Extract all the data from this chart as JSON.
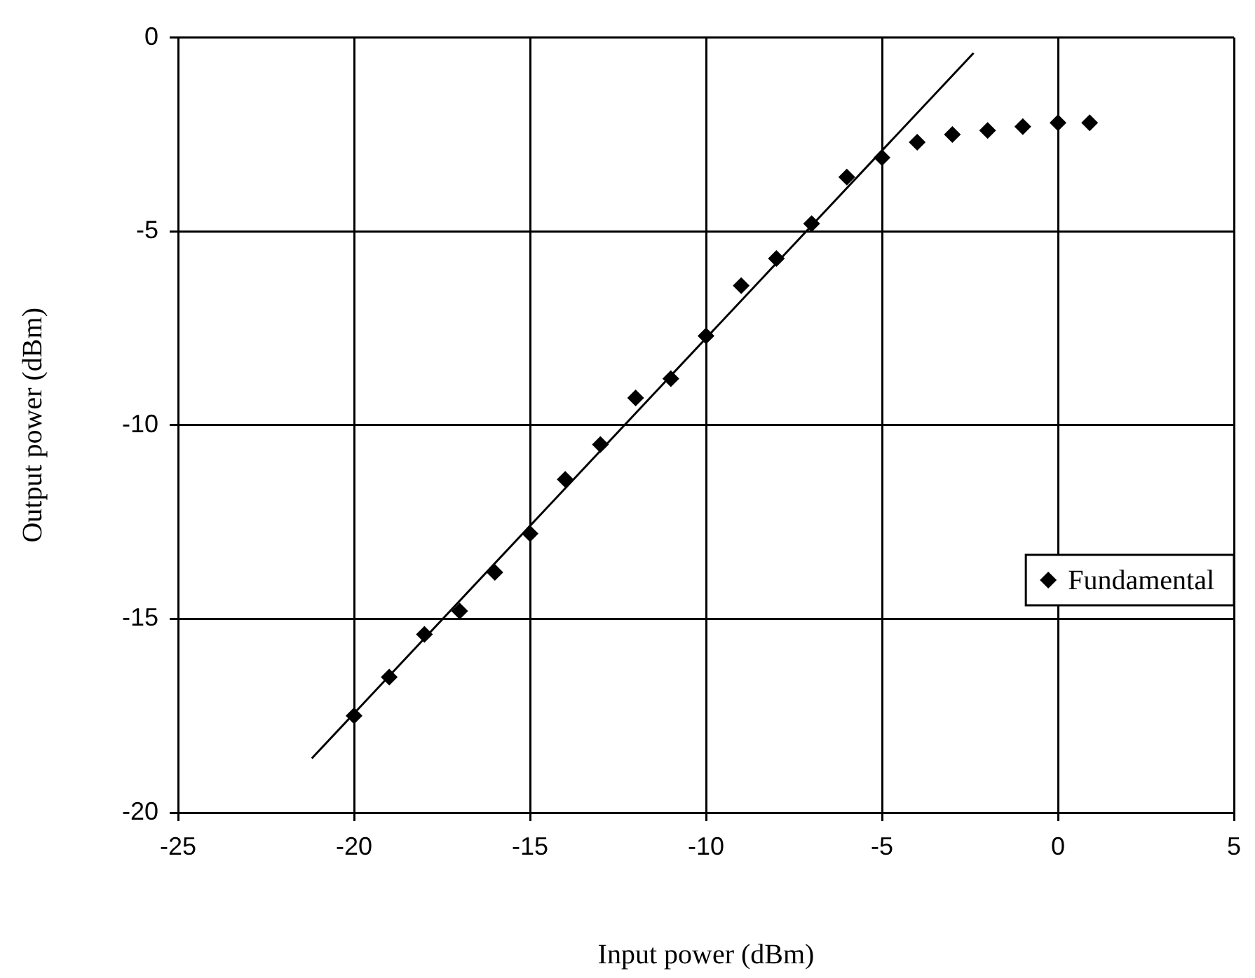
{
  "chart_data": {
    "type": "scatter",
    "xlabel": "Input power (dBm)",
    "ylabel": "Output power (dBm)",
    "xlim": [
      -25,
      5
    ],
    "xticks": [
      -25,
      -20,
      -15,
      -10,
      -5,
      0,
      5
    ],
    "ylim": [
      -20,
      0
    ],
    "yticks": [
      -20,
      -15,
      -10,
      -5,
      0
    ],
    "grid": true,
    "legend": "bottom right",
    "marker": "diamond",
    "series": [
      {
        "name": "Fundamental",
        "color": "#000000",
        "x": [
          -20,
          -19,
          -18,
          -17,
          -16,
          -15,
          -14,
          -13,
          -12,
          -11,
          -10,
          -9,
          -8,
          -7,
          -6,
          -5,
          -4,
          -3,
          -2,
          -1,
          0,
          0.9
        ],
        "values": [
          -17.5,
          -16.5,
          -15.4,
          -14.8,
          -13.8,
          -12.8,
          -11.4,
          -10.5,
          -9.3,
          -8.8,
          -7.7,
          -6.4,
          -5.7,
          -4.8,
          -3.6,
          -3.1,
          -2.7,
          -2.5,
          -2.4,
          -2.3,
          -2.2,
          -2.2
        ]
      },
      {
        "type": "line",
        "color": "#000000",
        "marker": "none",
        "x": [
          -21.2,
          -2.4
        ],
        "values": [
          -18.6,
          -0.4
        ]
      }
    ]
  }
}
